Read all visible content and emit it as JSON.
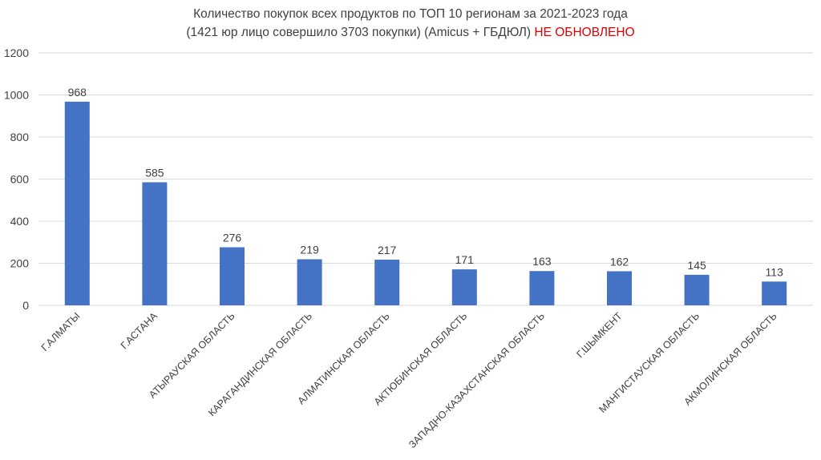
{
  "chart_data": {
    "type": "bar",
    "title_line1": "Количество покупок всех продуктов по ТОП 10 регионам за 2021-2023 года",
    "title_line2": "(1421 юр лицо совершило 3703 покупки) (Amicus + ГБДЮЛ)",
    "title_flag": "НЕ ОБНОВЛЕНО",
    "xlabel": "",
    "ylabel": "",
    "ylim": [
      0,
      1200
    ],
    "yticks": [
      0,
      200,
      400,
      600,
      800,
      1000,
      1200
    ],
    "grid": true,
    "categories": [
      "Г.АЛМАТЫ",
      "Г.АСТАНА",
      "АТЫРАУСКАЯ ОБЛАСТЬ",
      "КАРАГАНДИНСКАЯ ОБЛАСТЬ",
      "АЛМАТИНСКАЯ ОБЛАСТЬ",
      "АКТЮБИНСКАЯ ОБЛАСТЬ",
      "ЗАПАДНО-КАЗАХСТАНСКАЯ ОБЛАСТЬ",
      "Г.ШЫМКЕНТ",
      "МАНГИСТАУСКАЯ ОБЛАСТЬ",
      "АКМОЛИНСКАЯ ОБЛАСТЬ"
    ],
    "values": [
      968,
      585,
      276,
      219,
      217,
      171,
      163,
      162,
      145,
      113
    ],
    "colors": {
      "bar": "#4472c4",
      "grid": "#d9d9d9",
      "text": "#404040",
      "flag": "#e00000"
    }
  }
}
